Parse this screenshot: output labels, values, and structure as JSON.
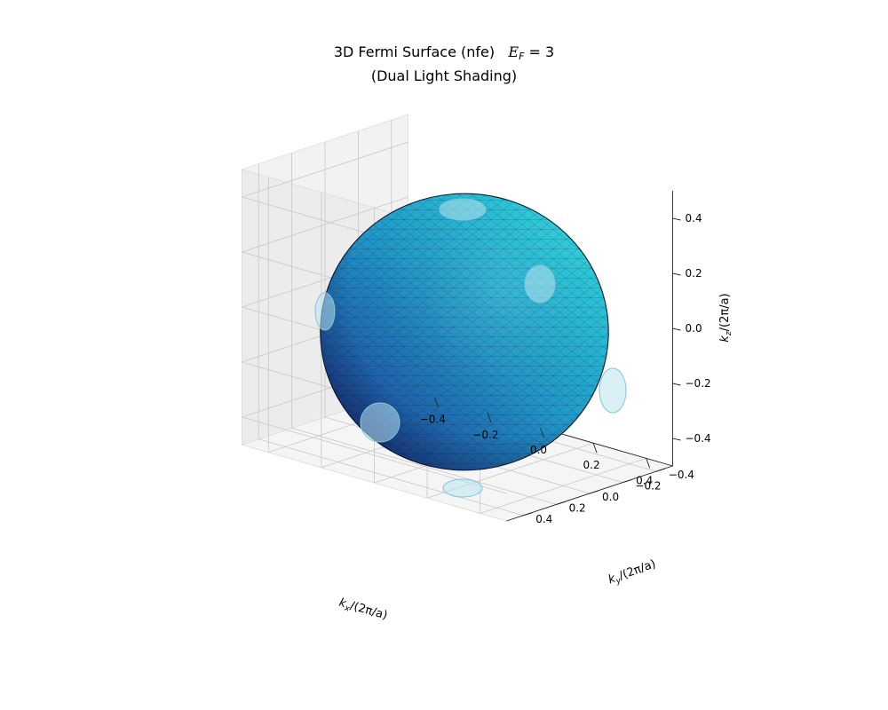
{
  "chart_data": {
    "type": "3d-surface",
    "title": {
      "line1_prefix": "3D Fermi Surface (nfe)",
      "math_var": "E",
      "math_sub": "F",
      "math_rest": " = 3",
      "line2": "(Dual Light Shading)"
    },
    "axes": {
      "x": {
        "label_main": "k",
        "label_sub": "x",
        "label_rest": "/(2π/a)",
        "lim": [
          -0.5,
          0.5
        ],
        "ticks": [
          -0.4,
          -0.2,
          0.0,
          0.2,
          0.4
        ],
        "tick_labels": [
          "−0.4",
          "−0.2",
          "0.0",
          "0.2",
          "0.4"
        ]
      },
      "y": {
        "label_main": "k",
        "label_sub": "y",
        "label_rest": "/(2π/a)",
        "lim": [
          -0.5,
          0.5
        ],
        "ticks": [
          -0.4,
          -0.2,
          0.0,
          0.2,
          0.4
        ],
        "tick_labels": [
          "−0.4",
          "−0.2",
          "0.0",
          "0.2",
          "0.4"
        ]
      },
      "z": {
        "label_main": "k",
        "label_sub": "z",
        "label_rest": "/(2π/a)",
        "lim": [
          -0.5,
          0.5
        ],
        "ticks": [
          -0.4,
          -0.2,
          0.0,
          0.2,
          0.4
        ],
        "tick_labels": [
          "−0.4",
          "−0.2",
          "0.0",
          "0.2",
          "0.4"
        ]
      }
    },
    "grid": true,
    "surface": {
      "shape": "sphere",
      "center": [
        0,
        0,
        0
      ],
      "radius": 0.49,
      "colormap": [
        "#1a237e",
        "#1f5fa8",
        "#2196c8",
        "#27c3d9",
        "#3de8e3"
      ],
      "edge_color": "#0a1a30"
    },
    "clipped_caps": [
      {
        "axis": "+z",
        "position": [
          0,
          0,
          0.5
        ]
      },
      {
        "axis": "-z",
        "position": [
          0,
          0,
          -0.5
        ]
      },
      {
        "axis": "+x",
        "position": [
          0.5,
          0,
          0
        ]
      },
      {
        "axis": "-x",
        "position": [
          -0.5,
          0,
          0
        ]
      },
      {
        "axis": "+y",
        "position": [
          0,
          0.5,
          0
        ]
      },
      {
        "axis": "-y",
        "position": [
          0,
          -0.5,
          0
        ]
      }
    ]
  }
}
